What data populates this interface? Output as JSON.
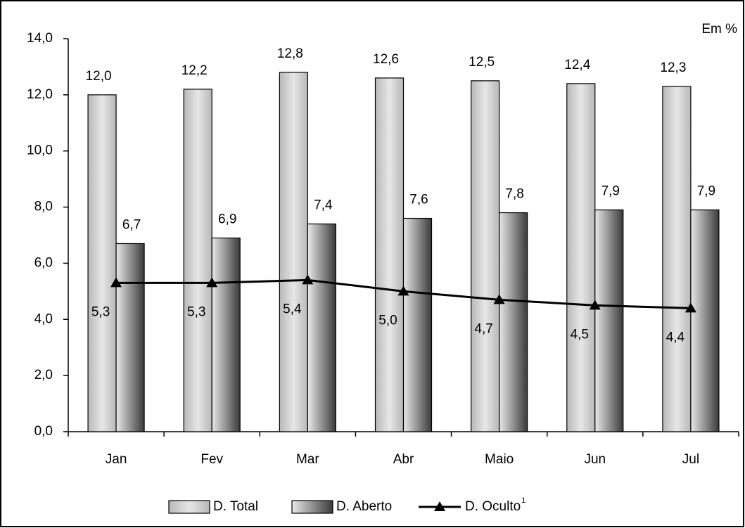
{
  "chart_data": {
    "type": "bar",
    "unit_label": "Em %",
    "categories": [
      "Jan",
      "Fev",
      "Mar",
      "Abr",
      "Maio",
      "Jun",
      "Jul"
    ],
    "series": [
      {
        "name": "D. Total",
        "type": "bar",
        "color": "#b8b8b8",
        "values": [
          12.0,
          12.2,
          12.8,
          12.6,
          12.5,
          12.4,
          12.3
        ],
        "value_labels": [
          "12,0",
          "12,2",
          "12,8",
          "12,6",
          "12,5",
          "12,4",
          "12,3"
        ]
      },
      {
        "name": "D. Aberto",
        "type": "bar",
        "color": "#3a3a3a",
        "values": [
          6.7,
          6.9,
          7.4,
          7.6,
          7.8,
          7.9,
          7.9
        ],
        "value_labels": [
          "6,7",
          "6,9",
          "7,4",
          "7,6",
          "7,8",
          "7,9",
          "7,9"
        ]
      },
      {
        "name": "D. Oculto",
        "name_superscript": "1",
        "type": "line",
        "color": "#000000",
        "values": [
          5.3,
          5.3,
          5.4,
          5.0,
          4.7,
          4.5,
          4.4
        ],
        "value_labels": [
          "5,3",
          "5,3",
          "5,4",
          "5,0",
          "4,7",
          "4,5",
          "4,4"
        ]
      }
    ],
    "ylim": [
      0,
      14
    ],
    "yticks": [
      {
        "value": 0,
        "label": "0,0"
      },
      {
        "value": 2,
        "label": "2,0"
      },
      {
        "value": 4,
        "label": "4,0"
      },
      {
        "value": 6,
        "label": "6,0"
      },
      {
        "value": 8,
        "label": "8,0"
      },
      {
        "value": 10,
        "label": "10,0"
      },
      {
        "value": 12,
        "label": "12,0"
      },
      {
        "value": 14,
        "label": "14,0"
      }
    ],
    "grid": false,
    "legend": "bottom"
  }
}
